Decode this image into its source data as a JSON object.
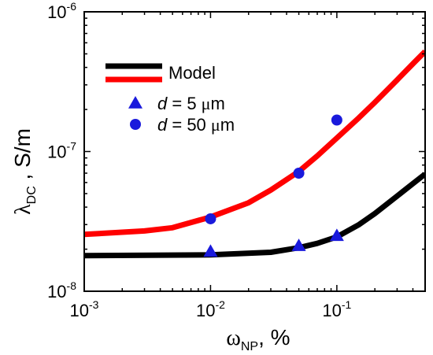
{
  "chart_data": {
    "type": "scatter",
    "x_scale": "log",
    "y_scale": "log",
    "xlim": [
      0.001,
      0.5
    ],
    "ylim": [
      1e-08,
      1e-06
    ],
    "grid": false,
    "legend_position": "top-left",
    "xlabel": {
      "symbol": "ω",
      "subscript": "NP",
      "suffix": ", %"
    },
    "ylabel": {
      "symbol": "λ",
      "subscript": "DC",
      "suffix": " , S/m"
    },
    "x_ticks": [
      {
        "value": 0.001,
        "base": "10",
        "exp": "-3"
      },
      {
        "value": 0.01,
        "base": "10",
        "exp": "-2"
      },
      {
        "value": 0.1,
        "base": "10",
        "exp": "-1"
      }
    ],
    "y_ticks": [
      {
        "value": 1e-08,
        "base": "10",
        "exp": "-8"
      },
      {
        "value": 1e-07,
        "base": "10",
        "exp": "-7"
      },
      {
        "value": 1e-06,
        "base": "10",
        "exp": "-6"
      }
    ],
    "series": [
      {
        "kind": "line",
        "color": "#000000",
        "x": [
          0.001,
          0.01,
          0.03,
          0.05,
          0.07,
          0.1,
          0.15,
          0.2,
          0.3,
          0.4,
          0.5
        ],
        "y": [
          1.8e-08,
          1.82e-08,
          1.9e-08,
          2.05e-08,
          2.2e-08,
          2.45e-08,
          3e-08,
          3.6e-08,
          4.8e-08,
          5.9e-08,
          6.9e-08
        ]
      },
      {
        "kind": "line",
        "color": "#ff0000",
        "x": [
          0.001,
          0.003,
          0.005,
          0.01,
          0.02,
          0.03,
          0.05,
          0.07,
          0.1,
          0.15,
          0.2,
          0.3,
          0.4,
          0.5
        ],
        "y": [
          2.55e-08,
          2.7e-08,
          2.85e-08,
          3.4e-08,
          4.3e-08,
          5.3e-08,
          7.2e-08,
          9.3e-08,
          1.25e-07,
          1.75e-07,
          2.25e-07,
          3.25e-07,
          4.25e-07,
          5.2e-07
        ]
      },
      {
        "kind": "scatter",
        "marker": "triangle",
        "color": "#1a1adc",
        "x": [
          0.01,
          0.05,
          0.1
        ],
        "y": [
          1.93e-08,
          2.12e-08,
          2.5e-08
        ]
      },
      {
        "kind": "scatter",
        "marker": "circle",
        "color": "#1a1adc",
        "x": [
          0.01,
          0.05,
          0.1
        ],
        "y": [
          3.3e-08,
          7e-08,
          1.68e-07
        ]
      }
    ],
    "legend": [
      {
        "kind": "line",
        "color": "#000000",
        "label": ""
      },
      {
        "kind": "line",
        "color": "#ff0000",
        "label": "Model"
      },
      {
        "kind": "triangle",
        "color": "#1a1adc",
        "var": "d",
        "text": " = 5 ",
        "unit_mu": "μ",
        "unit": "m"
      },
      {
        "kind": "circle",
        "color": "#1a1adc",
        "var": "d",
        "text": " = 50 ",
        "unit_mu": "μ",
        "unit": "m"
      }
    ]
  }
}
